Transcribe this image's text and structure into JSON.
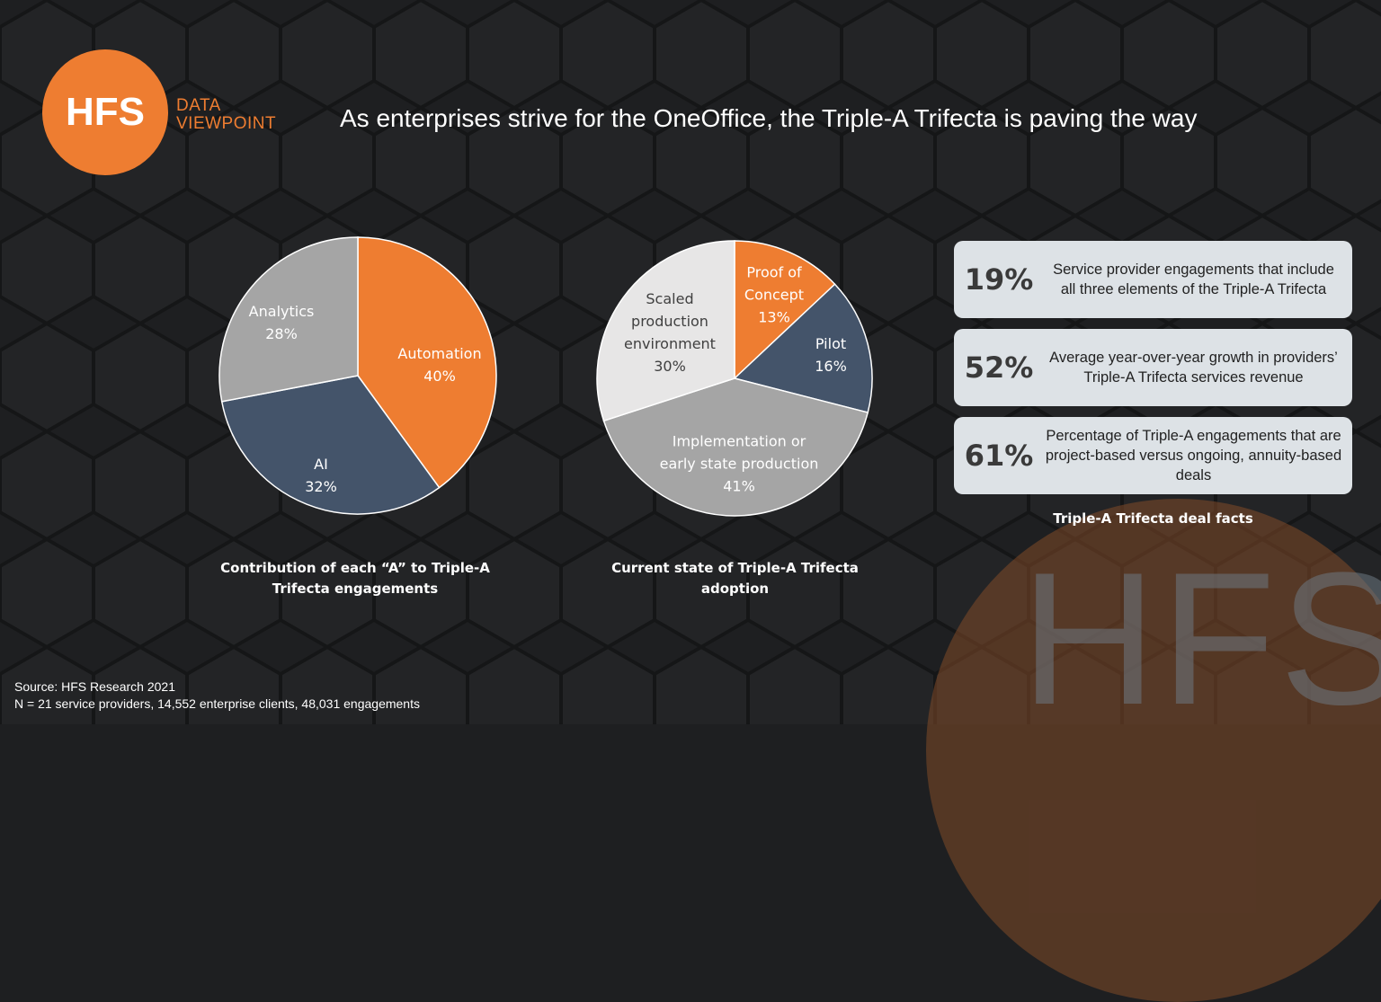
{
  "logo": {
    "mark": "HFS",
    "line1": "DATA",
    "line2": "VIEWPOINT"
  },
  "title": "As enterprises strive for the OneOffice, the Triple-A Trifecta is paving the way",
  "colors": {
    "orange": "#ee7d31",
    "navy": "#44546a",
    "gray": "#a5a5a5",
    "light": "#e7e6e6",
    "background": "#1e1f21"
  },
  "chart_data": [
    {
      "type": "pie",
      "title": "Contribution of each “A” to Triple-A Trifecta engagements",
      "slices": [
        {
          "label": "Automation",
          "value": 40,
          "display": "40%",
          "color": "#ee7d31"
        },
        {
          "label": "AI",
          "value": 32,
          "display": "32%",
          "color": "#44546a"
        },
        {
          "label": "Analytics",
          "value": 28,
          "display": "28%",
          "color": "#a5a5a5"
        }
      ]
    },
    {
      "type": "pie",
      "title": "Current state of Triple-A Trifecta adoption",
      "slices": [
        {
          "label": "Proof of Concept",
          "value": 13,
          "display": "13%",
          "color": "#ee7d31"
        },
        {
          "label": "Pilot",
          "value": 16,
          "display": "16%",
          "color": "#44546a"
        },
        {
          "label": "Implementation or early state production",
          "value": 41,
          "display": "41%",
          "color": "#a5a5a5"
        },
        {
          "label": "Scaled production environment",
          "value": 30,
          "display": "30%",
          "color": "#e7e6e6"
        }
      ]
    }
  ],
  "facts": {
    "items": [
      {
        "value": "19%",
        "text": "Service provider engagements that include all three elements of the Triple-A Trifecta"
      },
      {
        "value": "52%",
        "text": "Average year-over-year growth in providers’ Triple-A Trifecta services revenue"
      },
      {
        "value": "61%",
        "text": "Percentage of Triple-A engagements that are project-based versus ongoing, annuity-based deals"
      }
    ],
    "caption": "Triple-A Trifecta deal facts"
  },
  "watermark": "HFS",
  "source": {
    "line1": "Source: HFS Research 2021",
    "line2": "N = 21 service providers, 14,552 enterprise clients, 48,031 engagements"
  }
}
